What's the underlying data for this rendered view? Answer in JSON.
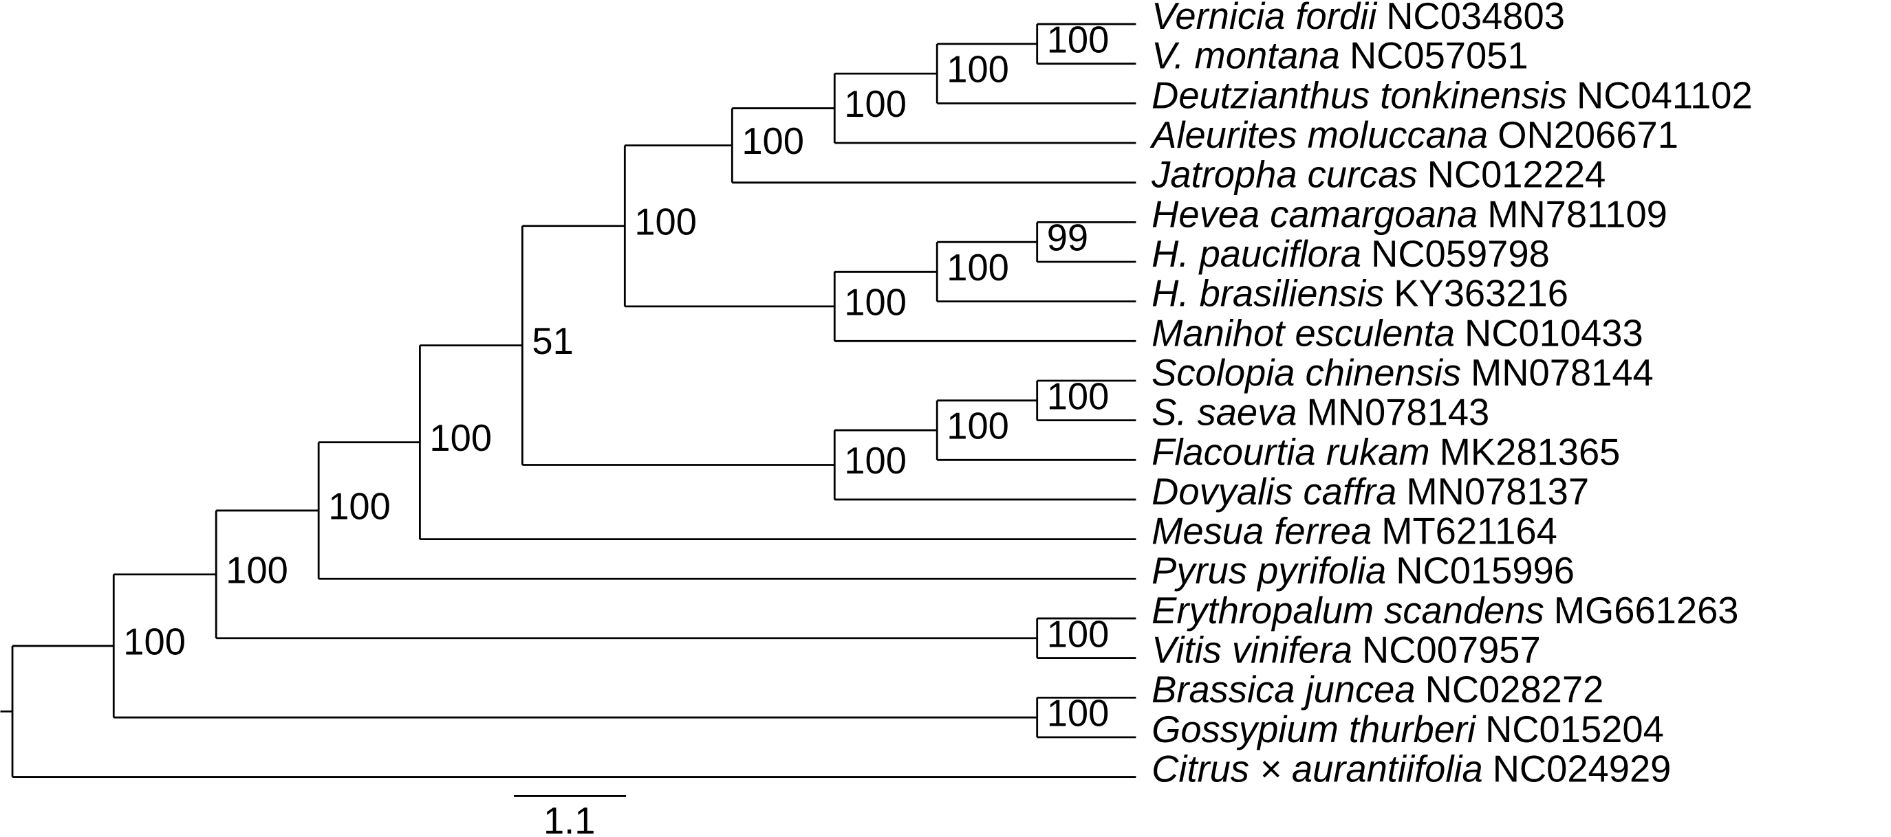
{
  "taxa": [
    {
      "name": "Vernicia fordii",
      "accession": "NC034803"
    },
    {
      "name": "V. montana",
      "accession": "NC057051"
    },
    {
      "name": "Deutzianthus tonkinensis",
      "accession": "NC041102"
    },
    {
      "name": "Aleurites moluccana",
      "accession": "ON206671"
    },
    {
      "name": "Jatropha curcas",
      "accession": "NC012224"
    },
    {
      "name": "Hevea camargoana",
      "accession": "MN781109"
    },
    {
      "name": "H. pauciflora",
      "accession": "NC059798"
    },
    {
      "name": "H. brasiliensis",
      "accession": "KY363216"
    },
    {
      "name": "Manihot esculenta",
      "accession": "NC010433"
    },
    {
      "name": "Scolopia chinensis",
      "accession": "MN078144"
    },
    {
      "name": "S. saeva",
      "accession": "MN078143"
    },
    {
      "name": "Flacourtia rukam",
      "accession": "MK281365"
    },
    {
      "name": "Dovyalis caffra",
      "accession": "MN078137"
    },
    {
      "name": "Mesua ferrea",
      "accession": "MT621164"
    },
    {
      "name": "Pyrus pyrifolia",
      "accession": "NC015996"
    },
    {
      "name": "Erythropalum scandens",
      "accession": "MG661263"
    },
    {
      "name": "Vitis vinifera",
      "accession": "NC007957"
    },
    {
      "name": "Brassica juncea",
      "accession": "NC028272"
    },
    {
      "name": "Gossypium thurberi",
      "accession": "NC015204"
    },
    {
      "name": "Citrus × aurantiifolia",
      "accession": "NC024929"
    }
  ],
  "nodes": [
    {
      "support": "100"
    },
    {
      "support": "100"
    },
    {
      "support": "100"
    },
    {
      "support": "100"
    },
    {
      "support": "99"
    },
    {
      "support": "100"
    },
    {
      "support": "100"
    },
    {
      "support": "100"
    },
    {
      "support": "100"
    },
    {
      "support": "100"
    },
    {
      "support": "100"
    },
    {
      "support": "51"
    },
    {
      "support": "100"
    },
    {
      "support": "100"
    },
    {
      "support": "100"
    },
    {
      "support": "100"
    },
    {
      "support": "100"
    },
    {
      "support": "100"
    }
  ],
  "scale_bar": {
    "label": "1.1"
  }
}
